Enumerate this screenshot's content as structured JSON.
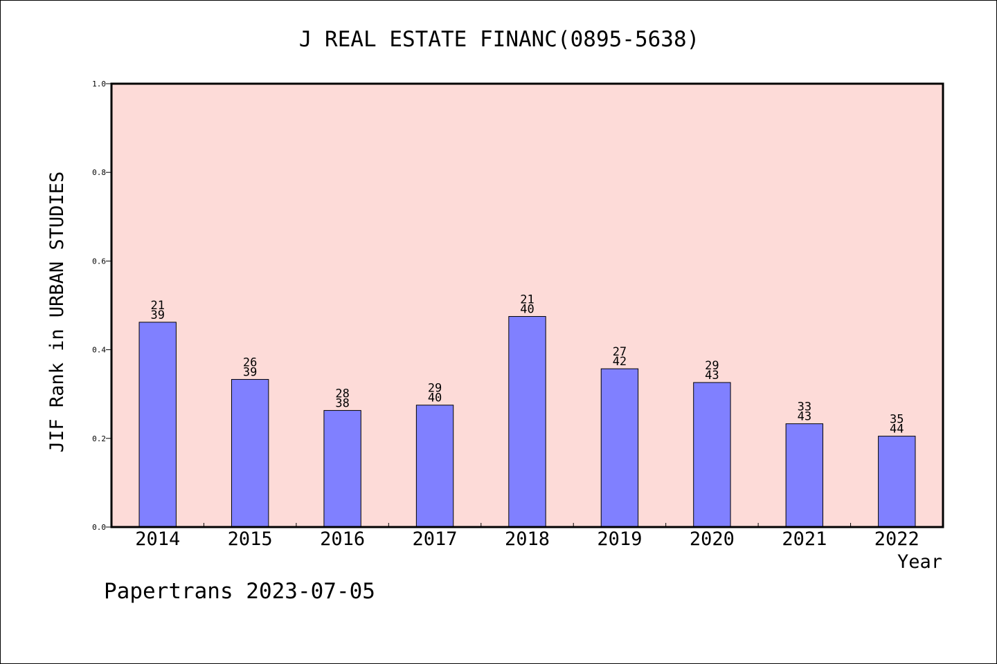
{
  "chart_data": {
    "type": "bar",
    "title": "J REAL ESTATE FINANC(0895-5638)",
    "xlabel": "Year",
    "ylabel": "JIF Rank in URBAN STUDIES",
    "ylim": [
      0,
      1.0
    ],
    "y_ticks": [
      "0.0",
      "0.2",
      "0.4",
      "0.6",
      "0.8",
      "1.0"
    ],
    "y_tick_values": [
      0,
      0.2,
      0.4,
      0.6,
      0.8,
      1.0
    ],
    "categories": [
      "2014",
      "2015",
      "2016",
      "2017",
      "2018",
      "2019",
      "2020",
      "2021",
      "2022"
    ],
    "values": [
      0.462,
      0.333,
      0.263,
      0.275,
      0.475,
      0.357,
      0.326,
      0.233,
      0.205
    ],
    "rank": [
      "21",
      "26",
      "28",
      "29",
      "21",
      "27",
      "29",
      "33",
      "35"
    ],
    "total": [
      "39",
      "39",
      "38",
      "40",
      "40",
      "42",
      "43",
      "43",
      "44"
    ],
    "bar_color": "#8080ff",
    "plot_background": "#fddbd8",
    "grid": false
  },
  "footer": "Papertrans 2023-07-05"
}
